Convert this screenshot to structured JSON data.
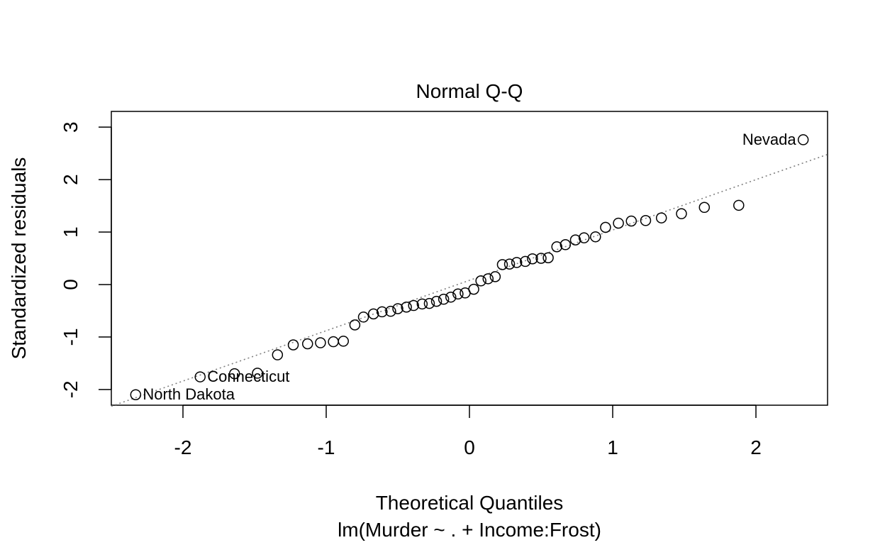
{
  "chart_data": {
    "type": "scatter",
    "title": "Normal Q-Q",
    "xlabel": "Theoretical Quantiles",
    "ylabel": "Standardized residuals",
    "subtitle": "lm(Murder ~ . + Income:Frost)",
    "xlim": [
      -2.5,
      2.5
    ],
    "ylim": [
      -2.3,
      3.3
    ],
    "x_ticks": [
      -2,
      -1,
      0,
      1,
      2
    ],
    "y_ticks": [
      -2,
      -1,
      0,
      1,
      2,
      3
    ],
    "x_tick_labels": [
      "-2",
      "-1",
      "0",
      "1",
      "2"
    ],
    "y_tick_labels": [
      "-2",
      "-1",
      "0",
      "1",
      "2",
      "3"
    ],
    "grid": false,
    "reference_line": {
      "slope": 0.96,
      "intercept": 0.08,
      "style": "dotted",
      "color": "#808080"
    },
    "points": [
      {
        "x": -2.33,
        "y": -2.1
      },
      {
        "x": -1.88,
        "y": -1.76
      },
      {
        "x": -1.64,
        "y": -1.7
      },
      {
        "x": -1.48,
        "y": -1.69
      },
      {
        "x": -1.34,
        "y": -1.34
      },
      {
        "x": -1.23,
        "y": -1.15
      },
      {
        "x": -1.13,
        "y": -1.13
      },
      {
        "x": -1.04,
        "y": -1.11
      },
      {
        "x": -0.95,
        "y": -1.09
      },
      {
        "x": -0.88,
        "y": -1.08
      },
      {
        "x": -0.8,
        "y": -0.77
      },
      {
        "x": -0.74,
        "y": -0.62
      },
      {
        "x": -0.67,
        "y": -0.56
      },
      {
        "x": -0.61,
        "y": -0.52
      },
      {
        "x": -0.55,
        "y": -0.51
      },
      {
        "x": -0.5,
        "y": -0.46
      },
      {
        "x": -0.44,
        "y": -0.43
      },
      {
        "x": -0.39,
        "y": -0.4
      },
      {
        "x": -0.33,
        "y": -0.37
      },
      {
        "x": -0.28,
        "y": -0.36
      },
      {
        "x": -0.23,
        "y": -0.32
      },
      {
        "x": -0.18,
        "y": -0.28
      },
      {
        "x": -0.13,
        "y": -0.24
      },
      {
        "x": -0.08,
        "y": -0.18
      },
      {
        "x": -0.03,
        "y": -0.16
      },
      {
        "x": 0.03,
        "y": -0.09
      },
      {
        "x": 0.08,
        "y": 0.07
      },
      {
        "x": 0.13,
        "y": 0.11
      },
      {
        "x": 0.18,
        "y": 0.15
      },
      {
        "x": 0.23,
        "y": 0.38
      },
      {
        "x": 0.28,
        "y": 0.39
      },
      {
        "x": 0.33,
        "y": 0.42
      },
      {
        "x": 0.39,
        "y": 0.44
      },
      {
        "x": 0.44,
        "y": 0.49
      },
      {
        "x": 0.5,
        "y": 0.5
      },
      {
        "x": 0.55,
        "y": 0.51
      },
      {
        "x": 0.61,
        "y": 0.72
      },
      {
        "x": 0.67,
        "y": 0.76
      },
      {
        "x": 0.74,
        "y": 0.85
      },
      {
        "x": 0.8,
        "y": 0.89
      },
      {
        "x": 0.88,
        "y": 0.91
      },
      {
        "x": 0.95,
        "y": 1.09
      },
      {
        "x": 1.04,
        "y": 1.17
      },
      {
        "x": 1.13,
        "y": 1.21
      },
      {
        "x": 1.23,
        "y": 1.22
      },
      {
        "x": 1.34,
        "y": 1.27
      },
      {
        "x": 1.48,
        "y": 1.35
      },
      {
        "x": 1.64,
        "y": 1.47
      },
      {
        "x": 1.88,
        "y": 1.51
      },
      {
        "x": 2.33,
        "y": 2.76
      }
    ],
    "annotations": [
      {
        "label": "North Dakota",
        "x": -2.33,
        "y": -2.1,
        "side": "right"
      },
      {
        "label": "Connecticut",
        "x": -1.88,
        "y": -1.76,
        "side": "right"
      },
      {
        "label": "Nevada",
        "x": 2.33,
        "y": 2.76,
        "side": "left"
      }
    ]
  }
}
